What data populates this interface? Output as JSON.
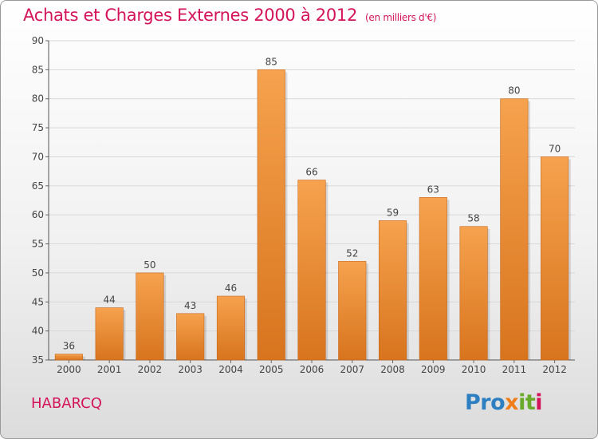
{
  "header": {
    "title": "Achats et Charges Externes 2000 à 2012",
    "unit": "(en milliers d'€)"
  },
  "footer": {
    "commune": "HABARCQ",
    "logo": [
      "Pro",
      "x",
      "it",
      "i"
    ]
  },
  "colors": {
    "title": "#d4145a",
    "bar_top": "#f6a24e",
    "bar_bottom": "#d8741e",
    "grid": "#d8d8d8"
  },
  "chart_data": {
    "type": "bar",
    "categories": [
      "2000",
      "2001",
      "2002",
      "2003",
      "2004",
      "2005",
      "2006",
      "2007",
      "2008",
      "2009",
      "2010",
      "2011",
      "2012"
    ],
    "values": [
      36,
      44,
      50,
      43,
      46,
      85,
      66,
      52,
      59,
      63,
      58,
      80,
      70
    ],
    "y_ticks": [
      35,
      40,
      45,
      50,
      55,
      60,
      65,
      70,
      75,
      80,
      85,
      90
    ],
    "ylim": [
      35,
      90
    ],
    "grid": true,
    "title": "Achats et Charges Externes 2000 à 2012",
    "xlabel": "",
    "ylabel": ""
  }
}
